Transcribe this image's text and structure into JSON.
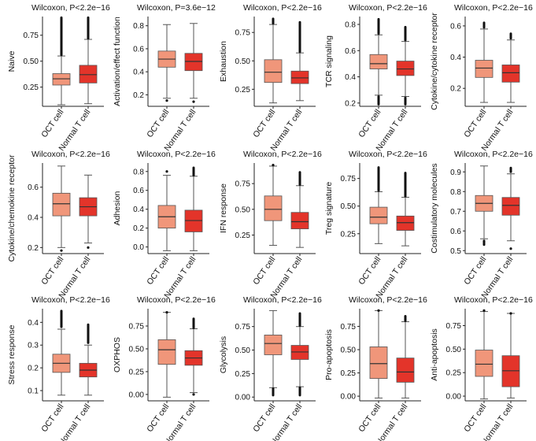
{
  "figure": {
    "name": "Wilcoxon boxplot grid: OCT cell vs Normal T cell"
  },
  "colors": {
    "oct": "#F0967A",
    "normal": "#E3342A",
    "outline": "#555555",
    "axis": "#222222"
  },
  "chart_data": [
    {
      "type": "box",
      "title": "Wilcoxon, P<2.2e−16",
      "ylabel": "Naive",
      "categories": [
        "OCT cell",
        "Normal T cell"
      ],
      "ylim": [
        0.065,
        0.93
      ],
      "yticks": [
        0.25,
        0.5,
        0.75
      ],
      "ytick_labels": [
        "0.25",
        "0.50",
        "0.75"
      ],
      "boxes": [
        {
          "low": 0.08,
          "q1": 0.27,
          "median": 0.33,
          "q3": 0.38,
          "high": 0.55,
          "outliers_from": 0.56,
          "outliers_to": 0.92
        },
        {
          "low": 0.09,
          "q1": 0.29,
          "median": 0.37,
          "q3": 0.46,
          "high": 0.71,
          "outliers_from": 0.72,
          "outliers_to": 0.92
        }
      ]
    },
    {
      "type": "box",
      "title": "Wilcoxon, P=3.6e−12",
      "ylabel": "Activation/effect function",
      "categories": [
        "OCT cell",
        "Normal T cell"
      ],
      "ylim": [
        0.1,
        0.88
      ],
      "yticks": [
        0.2,
        0.4,
        0.6,
        0.8
      ],
      "ytick_labels": [
        "0.2",
        "0.4",
        "0.6",
        "0.8"
      ],
      "boxes": [
        {
          "low": 0.17,
          "q1": 0.44,
          "median": 0.51,
          "q3": 0.58,
          "high": 0.81,
          "outliers_from": 0.15,
          "outliers_to": 0.16
        },
        {
          "low": 0.17,
          "q1": 0.41,
          "median": 0.49,
          "q3": 0.56,
          "high": 0.82,
          "outliers_from": 0.14,
          "outliers_to": 0.15
        }
      ]
    },
    {
      "type": "box",
      "title": "Wilcoxon, P<2.2e−16",
      "ylabel": "Exhaustion",
      "categories": [
        "OCT cell",
        "Normal T cell"
      ],
      "ylim": [
        0.1,
        0.89
      ],
      "yticks": [
        0.25,
        0.5,
        0.75
      ],
      "ytick_labels": [
        "0.25",
        "0.50",
        "0.75"
      ],
      "boxes": [
        {
          "low": 0.13,
          "q1": 0.31,
          "median": 0.4,
          "q3": 0.51,
          "high": 0.82,
          "outliers_from": 0.83,
          "outliers_to": 0.87
        },
        {
          "low": 0.15,
          "q1": 0.3,
          "median": 0.35,
          "q3": 0.41,
          "high": 0.57,
          "outliers_from": 0.58,
          "outliers_to": 0.84
        }
      ]
    },
    {
      "type": "box",
      "title": "Wilcoxon, P<2.2e−16",
      "ylabel": "TCR signaling",
      "categories": [
        "OCT cell",
        "Normal T cell"
      ],
      "ylim": [
        0.175,
        0.86
      ],
      "yticks": [
        0.2,
        0.4,
        0.6,
        0.8
      ],
      "ytick_labels": [
        "0.2",
        "0.4",
        "0.6",
        "0.8"
      ],
      "boxes": [
        {
          "low": 0.26,
          "q1": 0.46,
          "median": 0.5,
          "q3": 0.57,
          "high": 0.72,
          "outliers_from": 0.19,
          "outliers_to": 0.25,
          "outliers2_from": 0.73,
          "outliers2_to": 0.84
        },
        {
          "low": 0.25,
          "q1": 0.41,
          "median": 0.46,
          "q3": 0.52,
          "high": 0.67,
          "outliers_from": 0.19,
          "outliers_to": 0.24,
          "outliers2_from": 0.68,
          "outliers2_to": 0.78
        }
      ]
    },
    {
      "type": "box",
      "title": "Wilcoxon, P<2.2e−16",
      "ylabel": "Cytokine/cytokine receptor",
      "categories": [
        "OCT cell",
        "Normal T cell"
      ],
      "ylim": [
        0.085,
        0.66
      ],
      "yticks": [
        0.2,
        0.4,
        0.6
      ],
      "ytick_labels": [
        "0.2",
        "0.4",
        "0.6"
      ],
      "boxes": [
        {
          "low": 0.11,
          "q1": 0.27,
          "median": 0.33,
          "q3": 0.38,
          "high": 0.58,
          "outliers_from": 0.59,
          "outliers_to": 0.62
        },
        {
          "low": 0.11,
          "q1": 0.24,
          "median": 0.3,
          "q3": 0.35,
          "high": 0.51,
          "outliers_from": 0.52,
          "outliers_to": 0.55
        }
      ]
    },
    {
      "type": "box",
      "title": "Wilcoxon, P<2.2e−16",
      "ylabel": "Cytokine/chemokine receptor",
      "categories": [
        "OCT cell",
        "Normal T cell"
      ],
      "ylim": [
        0.16,
        0.76
      ],
      "yticks": [
        0.2,
        0.4,
        0.6
      ],
      "ytick_labels": [
        "0.2",
        "0.4",
        "0.6"
      ],
      "boxes": [
        {
          "low": 0.2,
          "q1": 0.41,
          "median": 0.49,
          "q3": 0.56,
          "high": 0.74,
          "outliers_from": 0.18,
          "outliers_to": 0.19
        },
        {
          "low": 0.23,
          "q1": 0.41,
          "median": 0.47,
          "q3": 0.53,
          "high": 0.68,
          "outliers_from": 0.2,
          "outliers_to": 0.2
        }
      ]
    },
    {
      "type": "box",
      "title": "Wilcoxon, P<2.2e−16",
      "ylabel": "Adhesion",
      "categories": [
        "OCT cell",
        "Normal T cell"
      ],
      "ylim": [
        -0.07,
        0.89
      ],
      "yticks": [
        0.0,
        0.2,
        0.4,
        0.6,
        0.8
      ],
      "ytick_labels": [
        "0.0",
        "0.2",
        "0.4",
        "0.6",
        "0.8"
      ],
      "boxes": [
        {
          "low": -0.04,
          "q1": 0.2,
          "median": 0.32,
          "q3": 0.44,
          "high": 0.76,
          "outliers_from": 0.8,
          "outliers_to": 0.81
        },
        {
          "low": -0.04,
          "q1": 0.16,
          "median": 0.28,
          "q3": 0.39,
          "high": 0.75,
          "outliers_from": 0.76,
          "outliers_to": 0.84
        }
      ]
    },
    {
      "type": "box",
      "title": "Wilcoxon, P<2.2e−16",
      "ylabel": "IFN response",
      "categories": [
        "OCT cell",
        "Normal T cell"
      ],
      "ylim": [
        0.07,
        0.95
      ],
      "yticks": [
        0.25,
        0.5,
        0.75
      ],
      "ytick_labels": [
        "0.25",
        "0.50",
        "0.75"
      ],
      "boxes": [
        {
          "low": 0.15,
          "q1": 0.39,
          "median": 0.5,
          "q3": 0.63,
          "high": 0.92,
          "outliers_from": 0.93,
          "outliers_to": 0.93
        },
        {
          "low": 0.13,
          "q1": 0.31,
          "median": 0.38,
          "q3": 0.47,
          "high": 0.73,
          "outliers_from": 0.74,
          "outliers_to": 0.86
        }
      ]
    },
    {
      "type": "box",
      "title": "Wilcoxon, P<2.2e−16",
      "ylabel": "Treg signature",
      "categories": [
        "OCT cell",
        "Normal T cell"
      ],
      "ylim": [
        0.07,
        0.89
      ],
      "yticks": [
        0.25,
        0.5,
        0.75
      ],
      "ytick_labels": [
        "0.25",
        "0.50",
        "0.75"
      ],
      "boxes": [
        {
          "low": 0.16,
          "q1": 0.34,
          "median": 0.4,
          "q3": 0.49,
          "high": 0.63,
          "outliers_from": 0.64,
          "outliers_to": 0.85
        },
        {
          "low": 0.14,
          "q1": 0.28,
          "median": 0.35,
          "q3": 0.41,
          "high": 0.58,
          "outliers_from": 0.59,
          "outliers_to": 0.8
        }
      ]
    },
    {
      "type": "box",
      "title": "Wilcoxon, P<2.2e−16",
      "ylabel": "Costimulatory molecules",
      "categories": [
        "OCT cell",
        "Normal T cell"
      ],
      "ylim": [
        0.485,
        0.945
      ],
      "yticks": [
        0.5,
        0.6,
        0.7,
        0.8,
        0.9
      ],
      "ytick_labels": [
        "0.5",
        "0.6",
        "0.7",
        "0.8",
        "0.9"
      ],
      "boxes": [
        {
          "low": 0.56,
          "q1": 0.7,
          "median": 0.74,
          "q3": 0.78,
          "high": 0.93,
          "outliers_from": 0.53,
          "outliers_to": 0.55
        },
        {
          "low": 0.55,
          "q1": 0.68,
          "median": 0.73,
          "q3": 0.77,
          "high": 0.89,
          "outliers_from": 0.9,
          "outliers_to": 0.92,
          "outliers2_from": 0.51,
          "outliers2_to": 0.51
        }
      ]
    },
    {
      "type": "box",
      "title": "Wilcoxon, P<2.2e−16",
      "ylabel": "Stress response",
      "categories": [
        "OCT cell",
        "Normal T cell"
      ],
      "ylim": [
        0.055,
        0.46
      ],
      "yticks": [
        0.1,
        0.2,
        0.3,
        0.4
      ],
      "ytick_labels": [
        "0.1",
        "0.2",
        "0.3",
        "0.4"
      ],
      "boxes": [
        {
          "low": 0.08,
          "q1": 0.18,
          "median": 0.22,
          "q3": 0.26,
          "high": 0.37,
          "outliers_from": 0.38,
          "outliers_to": 0.45
        },
        {
          "low": 0.08,
          "q1": 0.16,
          "median": 0.19,
          "q3": 0.22,
          "high": 0.3,
          "outliers_from": 0.31,
          "outliers_to": 0.39
        }
      ]
    },
    {
      "type": "box",
      "title": "Wilcoxon, P<2.2e−16",
      "ylabel": "OXPHOS",
      "categories": [
        "OCT cell",
        "Normal T cell"
      ],
      "ylim": [
        -0.07,
        0.94
      ],
      "yticks": [
        0.0,
        0.25,
        0.5,
        0.75
      ],
      "ytick_labels": [
        "0.00",
        "0.25",
        "0.50",
        "0.75"
      ],
      "boxes": [
        {
          "low": -0.03,
          "q1": 0.33,
          "median": 0.49,
          "q3": 0.6,
          "high": 0.9,
          "outliers_from": 0.9,
          "outliers_to": 0.9
        },
        {
          "low": 0.02,
          "q1": 0.32,
          "median": 0.4,
          "q3": 0.48,
          "high": 0.72,
          "outliers_from": 0.73,
          "outliers_to": 0.83,
          "outliers2_from": 0.0,
          "outliers2_to": 0.01
        }
      ]
    },
    {
      "type": "box",
      "title": "Wilcoxon, P<2.2e−16",
      "ylabel": "Glycolysis",
      "categories": [
        "OCT cell",
        "Normal T cell"
      ],
      "ylim": [
        -0.04,
        0.94
      ],
      "yticks": [
        0.0,
        0.25,
        0.5,
        0.75
      ],
      "ytick_labels": [
        "0.00",
        "0.25",
        "0.50",
        "0.75"
      ],
      "boxes": [
        {
          "low": 0.1,
          "q1": 0.45,
          "median": 0.57,
          "q3": 0.66,
          "high": 0.92,
          "outliers_from": 0.02,
          "outliers_to": 0.09
        },
        {
          "low": 0.11,
          "q1": 0.4,
          "median": 0.48,
          "q3": 0.55,
          "high": 0.75,
          "outliers_from": 0.76,
          "outliers_to": 0.89,
          "outliers2_from": 0.02,
          "outliers2_to": 0.1
        }
      ]
    },
    {
      "type": "box",
      "title": "Wilcoxon, P<2.2e−16",
      "ylabel": "Pro-apoptosis",
      "categories": [
        "OCT cell",
        "Normal T cell"
      ],
      "ylim": [
        -0.05,
        0.94
      ],
      "yticks": [
        0.0,
        0.25,
        0.5,
        0.75
      ],
      "ytick_labels": [
        "0.00",
        "0.25",
        "0.50",
        "0.75"
      ],
      "boxes": [
        {
          "low": -0.02,
          "q1": 0.19,
          "median": 0.35,
          "q3": 0.53,
          "high": 0.92,
          "outliers_from": 0.92,
          "outliers_to": 0.92
        },
        {
          "low": -0.02,
          "q1": 0.15,
          "median": 0.26,
          "q3": 0.41,
          "high": 0.8,
          "outliers_from": 0.81,
          "outliers_to": 0.86
        }
      ]
    },
    {
      "type": "box",
      "title": "Wilcoxon, P<2.2e−16",
      "ylabel": "Anti-apoptosis",
      "categories": [
        "OCT cell",
        "Normal T cell"
      ],
      "ylim": [
        -0.05,
        0.93
      ],
      "yticks": [
        0.0,
        0.25,
        0.5,
        0.75
      ],
      "ytick_labels": [
        "0.00",
        "0.25",
        "0.50",
        "0.75"
      ],
      "boxes": [
        {
          "low": -0.03,
          "q1": 0.21,
          "median": 0.34,
          "q3": 0.49,
          "high": 0.9,
          "outliers_from": 0.91,
          "outliers_to": 0.91
        },
        {
          "low": -0.02,
          "q1": 0.1,
          "median": 0.27,
          "q3": 0.43,
          "high": 0.88,
          "outliers_from": 0.88,
          "outliers_to": 0.88
        }
      ]
    }
  ]
}
